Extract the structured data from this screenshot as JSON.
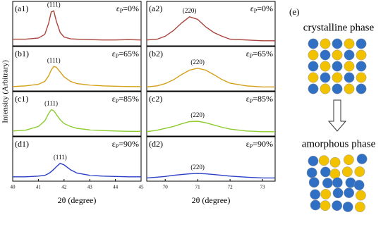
{
  "chart_data": [
    {
      "type": "line",
      "ylabel": "Intensity (Arbitrary)",
      "xlabel": "2θ (degree)",
      "xlim": [
        40,
        45
      ],
      "xticks": [
        40,
        41,
        42,
        43,
        44,
        45
      ],
      "ylim": [
        0,
        1
      ],
      "x": [
        40,
        40.5,
        41,
        41.25,
        41.4,
        41.5,
        41.6,
        41.7,
        41.85,
        42,
        42.25,
        42.5,
        43,
        43.5,
        44,
        44.5,
        45
      ],
      "panels": [
        {
          "label": "(a1)",
          "peak_label": "(111)",
          "strain": {
            "symbol": "ε",
            "subscript": "P",
            "text": "=0%"
          },
          "color": "#a8453c",
          "values": [
            0.12,
            0.12,
            0.15,
            0.25,
            0.55,
            0.85,
            0.88,
            0.6,
            0.3,
            0.18,
            0.13,
            0.12,
            0.11,
            0.1,
            0.1,
            0.11,
            0.1
          ]
        },
        {
          "label": "(b1)",
          "peak_label": "(111)",
          "strain": {
            "symbol": "ε",
            "subscript": "P",
            "text": "=65%"
          },
          "color": "#d4a017",
          "values": [
            0.06,
            0.08,
            0.12,
            0.2,
            0.35,
            0.5,
            0.6,
            0.58,
            0.45,
            0.32,
            0.2,
            0.14,
            0.1,
            0.08,
            0.07,
            0.06,
            0.06
          ]
        },
        {
          "label": "(c1)",
          "peak_label": "(111)",
          "strain": {
            "symbol": "ε",
            "subscript": "P",
            "text": "=85%"
          },
          "color": "#8ccc2e",
          "values": [
            0.08,
            0.1,
            0.2,
            0.35,
            0.55,
            0.65,
            0.62,
            0.52,
            0.38,
            0.28,
            0.2,
            0.15,
            0.11,
            0.09,
            0.08,
            0.07,
            0.07
          ]
        },
        {
          "label": "(d1)",
          "peak_label": "(111)",
          "strain": {
            "symbol": "ε",
            "subscript": "P",
            "text": "=90%"
          },
          "color": "#2a3fc8",
          "values": [
            0.06,
            0.06,
            0.08,
            0.1,
            0.15,
            0.2,
            0.26,
            0.33,
            0.42,
            0.38,
            0.25,
            0.16,
            0.1,
            0.08,
            0.07,
            0.06,
            0.06
          ]
        }
      ]
    },
    {
      "type": "line",
      "xlabel": "2θ (degree)",
      "xlim": [
        69.43,
        73.39
      ],
      "xticks": [
        70,
        71,
        72,
        73
      ],
      "ylim": [
        0,
        1
      ],
      "x": [
        69.43,
        69.75,
        70,
        70.25,
        70.5,
        70.75,
        71,
        71.25,
        71.5,
        71.75,
        72,
        72.5,
        73,
        73.39
      ],
      "panels": [
        {
          "label": "(a2)",
          "peak_label": "(220)",
          "strain": {
            "symbol": "ε",
            "subscript": "P",
            "text": "=0%"
          },
          "color": "#a8453c",
          "values": [
            0.1,
            0.12,
            0.2,
            0.35,
            0.55,
            0.72,
            0.65,
            0.45,
            0.3,
            0.2,
            0.12,
            0.1,
            0.08,
            0.08
          ]
        },
        {
          "label": "(b2)",
          "peak_label": "(220)",
          "strain": {
            "symbol": "ε",
            "subscript": "P",
            "text": "=65%"
          },
          "color": "#d4a017",
          "values": [
            0.05,
            0.08,
            0.14,
            0.24,
            0.38,
            0.5,
            0.55,
            0.5,
            0.38,
            0.25,
            0.15,
            0.08,
            0.05,
            0.05
          ]
        },
        {
          "label": "(c2)",
          "peak_label": "(220)",
          "strain": {
            "symbol": "ε",
            "subscript": "P",
            "text": "=85%"
          },
          "color": "#8ccc2e",
          "values": [
            0.06,
            0.1,
            0.15,
            0.2,
            0.27,
            0.33,
            0.34,
            0.3,
            0.24,
            0.18,
            0.13,
            0.08,
            0.06,
            0.06
          ]
        },
        {
          "label": "(d2)",
          "peak_label": "(220)",
          "strain": {
            "symbol": "ε",
            "subscript": "P",
            "text": "=90%"
          },
          "color": "#2a3fc8",
          "values": [
            0.03,
            0.05,
            0.07,
            0.1,
            0.12,
            0.14,
            0.15,
            0.14,
            0.12,
            0.1,
            0.08,
            0.05,
            0.03,
            0.03
          ]
        }
      ]
    }
  ],
  "diagram": {
    "label": "(e)",
    "top": "crystalline phase",
    "bottom": "amorphous phase"
  }
}
